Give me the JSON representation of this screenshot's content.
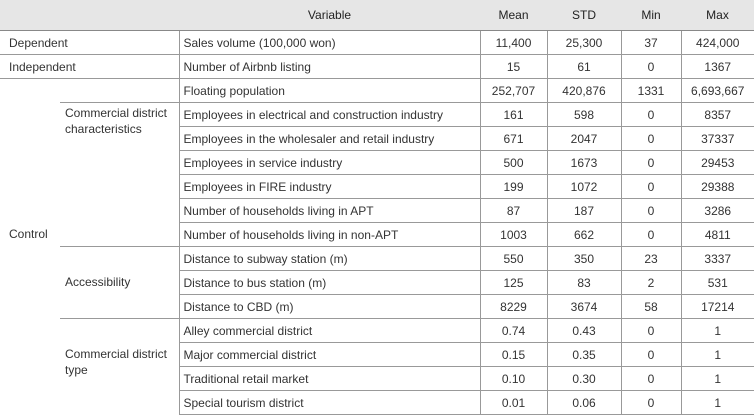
{
  "header": {
    "group": "",
    "subgroup": "",
    "variable": "Variable",
    "mean": "Mean",
    "std": "STD",
    "min": "Min",
    "max": "Max"
  },
  "roles": {
    "dependent": "Dependent",
    "independent": "Independent",
    "control": "Control"
  },
  "subgroups": {
    "commercial": "Commercial district characteristics",
    "accessibility": "Accessibility",
    "district_type": "Commercial district type"
  },
  "rows": [
    {
      "variable": "Sales volume (100,000 won)",
      "mean": "11,400",
      "std": "25,300",
      "min": "37",
      "max": "424,000"
    },
    {
      "variable": "Number of Airbnb listing",
      "mean": "15",
      "std": "61",
      "min": "0",
      "max": "1367"
    },
    {
      "variable": "Floating population",
      "mean": "252,707",
      "std": "420,876",
      "min": "1331",
      "max": "6,693,667"
    },
    {
      "variable": "Employees in electrical and construction industry",
      "mean": "161",
      "std": "598",
      "min": "0",
      "max": "8357"
    },
    {
      "variable": "Employees in the wholesaler and retail industry",
      "mean": "671",
      "std": "2047",
      "min": "0",
      "max": "37337"
    },
    {
      "variable": "Employees in service industry",
      "mean": "500",
      "std": "1673",
      "min": "0",
      "max": "29453"
    },
    {
      "variable": "Employees in FIRE industry",
      "mean": "199",
      "std": "1072",
      "min": "0",
      "max": "29388"
    },
    {
      "variable": "Number of households living in APT",
      "mean": "87",
      "std": "187",
      "min": "0",
      "max": "3286"
    },
    {
      "variable": "Number of households living in non-APT",
      "mean": "1003",
      "std": "662",
      "min": "0",
      "max": "4811"
    },
    {
      "variable": "Distance to subway station (m)",
      "mean": "550",
      "std": "350",
      "min": "23",
      "max": "3337"
    },
    {
      "variable": "Distance to bus station (m)",
      "mean": "125",
      "std": "83",
      "min": "2",
      "max": "531"
    },
    {
      "variable": "Distance to CBD (m)",
      "mean": "8229",
      "std": "3674",
      "min": "58",
      "max": "17214"
    },
    {
      "variable": "Alley commercial district",
      "mean": "0.74",
      "std": "0.43",
      "min": "0",
      "max": "1"
    },
    {
      "variable": "Major commercial district",
      "mean": "0.15",
      "std": "0.35",
      "min": "0",
      "max": "1"
    },
    {
      "variable": "Traditional retail market",
      "mean": "0.10",
      "std": "0.30",
      "min": "0",
      "max": "1"
    },
    {
      "variable": "Special tourism district",
      "mean": "0.01",
      "std": "0.06",
      "min": "0",
      "max": "1"
    }
  ]
}
